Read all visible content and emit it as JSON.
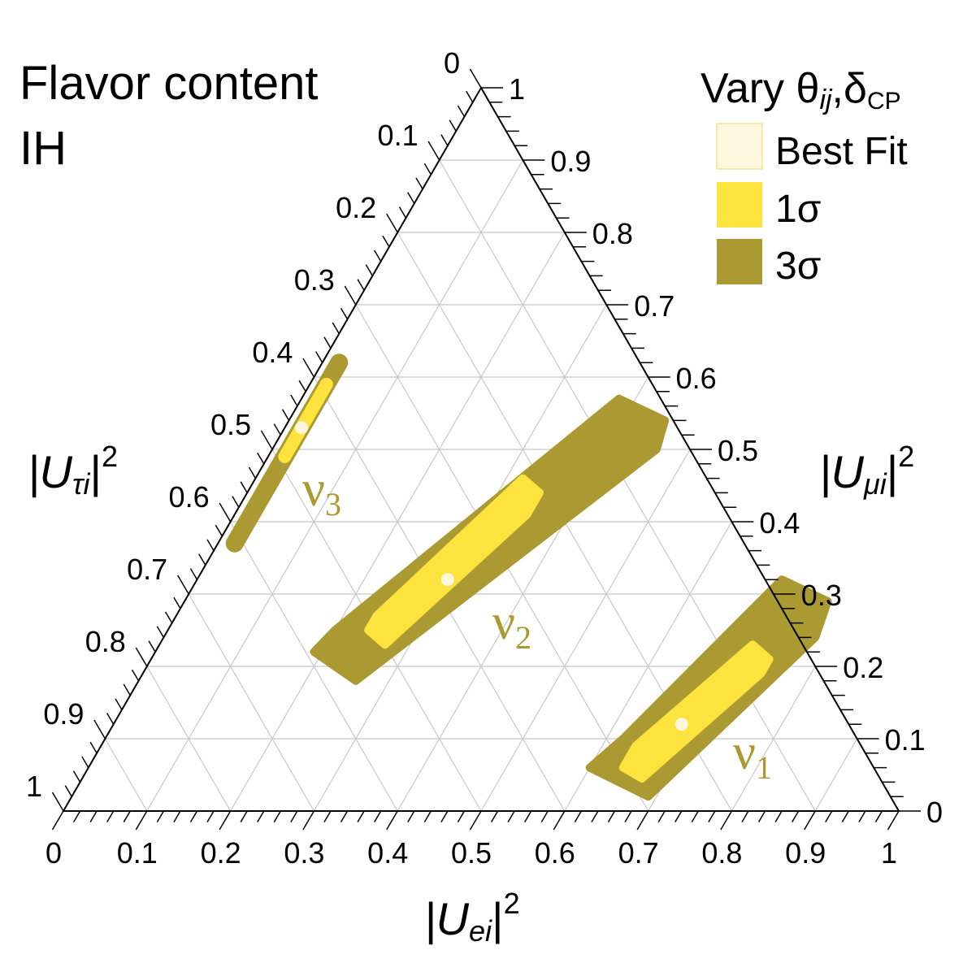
{
  "chart_data": {
    "type": "ternary",
    "title_lines": [
      "Flavor content",
      "IH"
    ],
    "axes": {
      "e": {
        "label_base": "|U",
        "label_sub": "ei",
        "label_sup": "2"
      },
      "mu": {
        "label_base": "|U",
        "label_sub": "μi",
        "label_sup": "2"
      },
      "tau": {
        "label_base": "|U",
        "label_sub": "τi",
        "label_sup": "2"
      }
    },
    "ticks": {
      "e": [
        "0",
        "0.1",
        "0.2",
        "0.3",
        "0.4",
        "0.5",
        "0.6",
        "0.7",
        "0.8",
        "0.9",
        "1"
      ],
      "mu": [
        "0",
        "0.1",
        "0.2",
        "0.3",
        "0.4",
        "0.5",
        "0.6",
        "0.7",
        "0.8",
        "0.9",
        "1"
      ],
      "tau": [
        "0",
        "0.1",
        "0.2",
        "0.3",
        "0.4",
        "0.5",
        "0.6",
        "0.7",
        "0.8",
        "0.9",
        "1"
      ]
    },
    "grid": true,
    "legend": {
      "title_base": "Vary θ",
      "title_sub1": "ij",
      "title_mid": ",δ",
      "title_sub2": "CP",
      "position": "top-right",
      "items": [
        {
          "label": "Best Fit",
          "color": "#fdf7dd"
        },
        {
          "label": "1σ",
          "color": "#fde33e"
        },
        {
          "label": "3σ",
          "color": "#ab9a32"
        }
      ]
    },
    "colors": {
      "sigma3": "#ab9a32",
      "sigma1": "#fde33e",
      "best_fit": "#fdf7dd",
      "grid": "#c8c8c8"
    },
    "series": [
      {
        "name": "ν",
        "index": "1",
        "best_fit": {
          "e": 0.68,
          "mu": 0.12,
          "tau": 0.2
        },
        "region_3sigma": [
          {
            "e": 0.6,
            "mu": 0.06
          },
          {
            "e": 0.69,
            "mu": 0.02
          },
          {
            "e": 0.78,
            "mu": 0.24
          },
          {
            "e": 0.77,
            "mu": 0.29
          },
          {
            "e": 0.7,
            "mu": 0.32
          },
          {
            "e": 0.62,
            "mu": 0.1
          }
        ],
        "region_1sigma": [
          {
            "e": 0.64,
            "mu": 0.06
          },
          {
            "e": 0.67,
            "mu": 0.045
          },
          {
            "e": 0.74,
            "mu": 0.19
          },
          {
            "e": 0.74,
            "mu": 0.21
          },
          {
            "e": 0.71,
            "mu": 0.23
          },
          {
            "e": 0.64,
            "mu": 0.09
          }
        ]
      },
      {
        "name": "ν",
        "index": "2",
        "best_fit": {
          "e": 0.3,
          "mu": 0.32,
          "tau": 0.38
        },
        "region_3sigma": [
          {
            "e": 0.19,
            "mu": 0.22
          },
          {
            "e": 0.26,
            "mu": 0.18
          },
          {
            "e": 0.46,
            "mu": 0.5
          },
          {
            "e": 0.45,
            "mu": 0.54
          },
          {
            "e": 0.38,
            "mu": 0.57
          },
          {
            "e": 0.2,
            "mu": 0.25
          }
        ],
        "region_1sigma": [
          {
            "e": 0.24,
            "mu": 0.25
          },
          {
            "e": 0.27,
            "mu": 0.23
          },
          {
            "e": 0.35,
            "mu": 0.41
          },
          {
            "e": 0.35,
            "mu": 0.44
          },
          {
            "e": 0.32,
            "mu": 0.46
          },
          {
            "e": 0.24,
            "mu": 0.27
          }
        ]
      },
      {
        "name": "ν",
        "index": "3",
        "best_fit": {
          "e": 0.02,
          "mu": 0.53,
          "tau": 0.45
        },
        "region_3sigma_band": {
          "e": 0.02,
          "mu_range": [
            0.37,
            0.62
          ]
        },
        "region_1sigma_band": {
          "e": 0.02,
          "mu_range": [
            0.49,
            0.59
          ]
        }
      }
    ]
  }
}
